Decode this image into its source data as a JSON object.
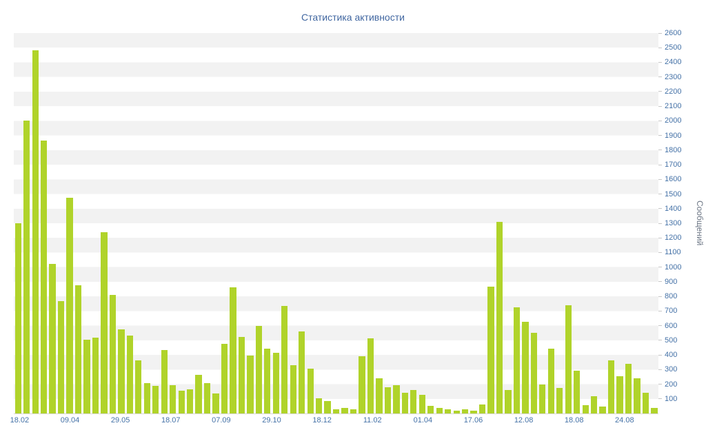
{
  "chart_data": {
    "type": "bar",
    "title": "Статистика активности",
    "ylabel": "Сообщений",
    "xlabel": "",
    "ylim": [
      0,
      2600
    ],
    "ytick_step": 100,
    "grid": "alternating horizontal bands",
    "legend": "none",
    "bar_color": "#b0d32a",
    "band_color": "#f2f2f2",
    "label_color": "#4572a7",
    "title_color": "#4066a0",
    "ylabel_color": "#6b7584",
    "x_tick_labels": [
      "18.02",
      "09.04",
      "29.05",
      "18.07",
      "07.09",
      "29.10",
      "18.12",
      "11.02",
      "01.04",
      "17.06",
      "12.08",
      "18.08",
      "24.08"
    ],
    "x_label_start_pct": 0.9,
    "x_label_step_pct": 7.82,
    "values": [
      1300,
      2000,
      2480,
      1865,
      1020,
      770,
      1475,
      875,
      505,
      520,
      1240,
      810,
      575,
      530,
      365,
      205,
      190,
      435,
      195,
      155,
      165,
      265,
      205,
      135,
      475,
      860,
      525,
      395,
      600,
      445,
      415,
      735,
      330,
      560,
      305,
      105,
      85,
      30,
      40,
      30,
      390,
      515,
      240,
      180,
      195,
      140,
      160,
      125,
      50,
      40,
      30,
      20,
      30,
      20,
      60,
      865,
      1310,
      160,
      725,
      625,
      550,
      200,
      445,
      175,
      740,
      290,
      55,
      120,
      45,
      365,
      255,
      340,
      240,
      140,
      40
    ]
  }
}
